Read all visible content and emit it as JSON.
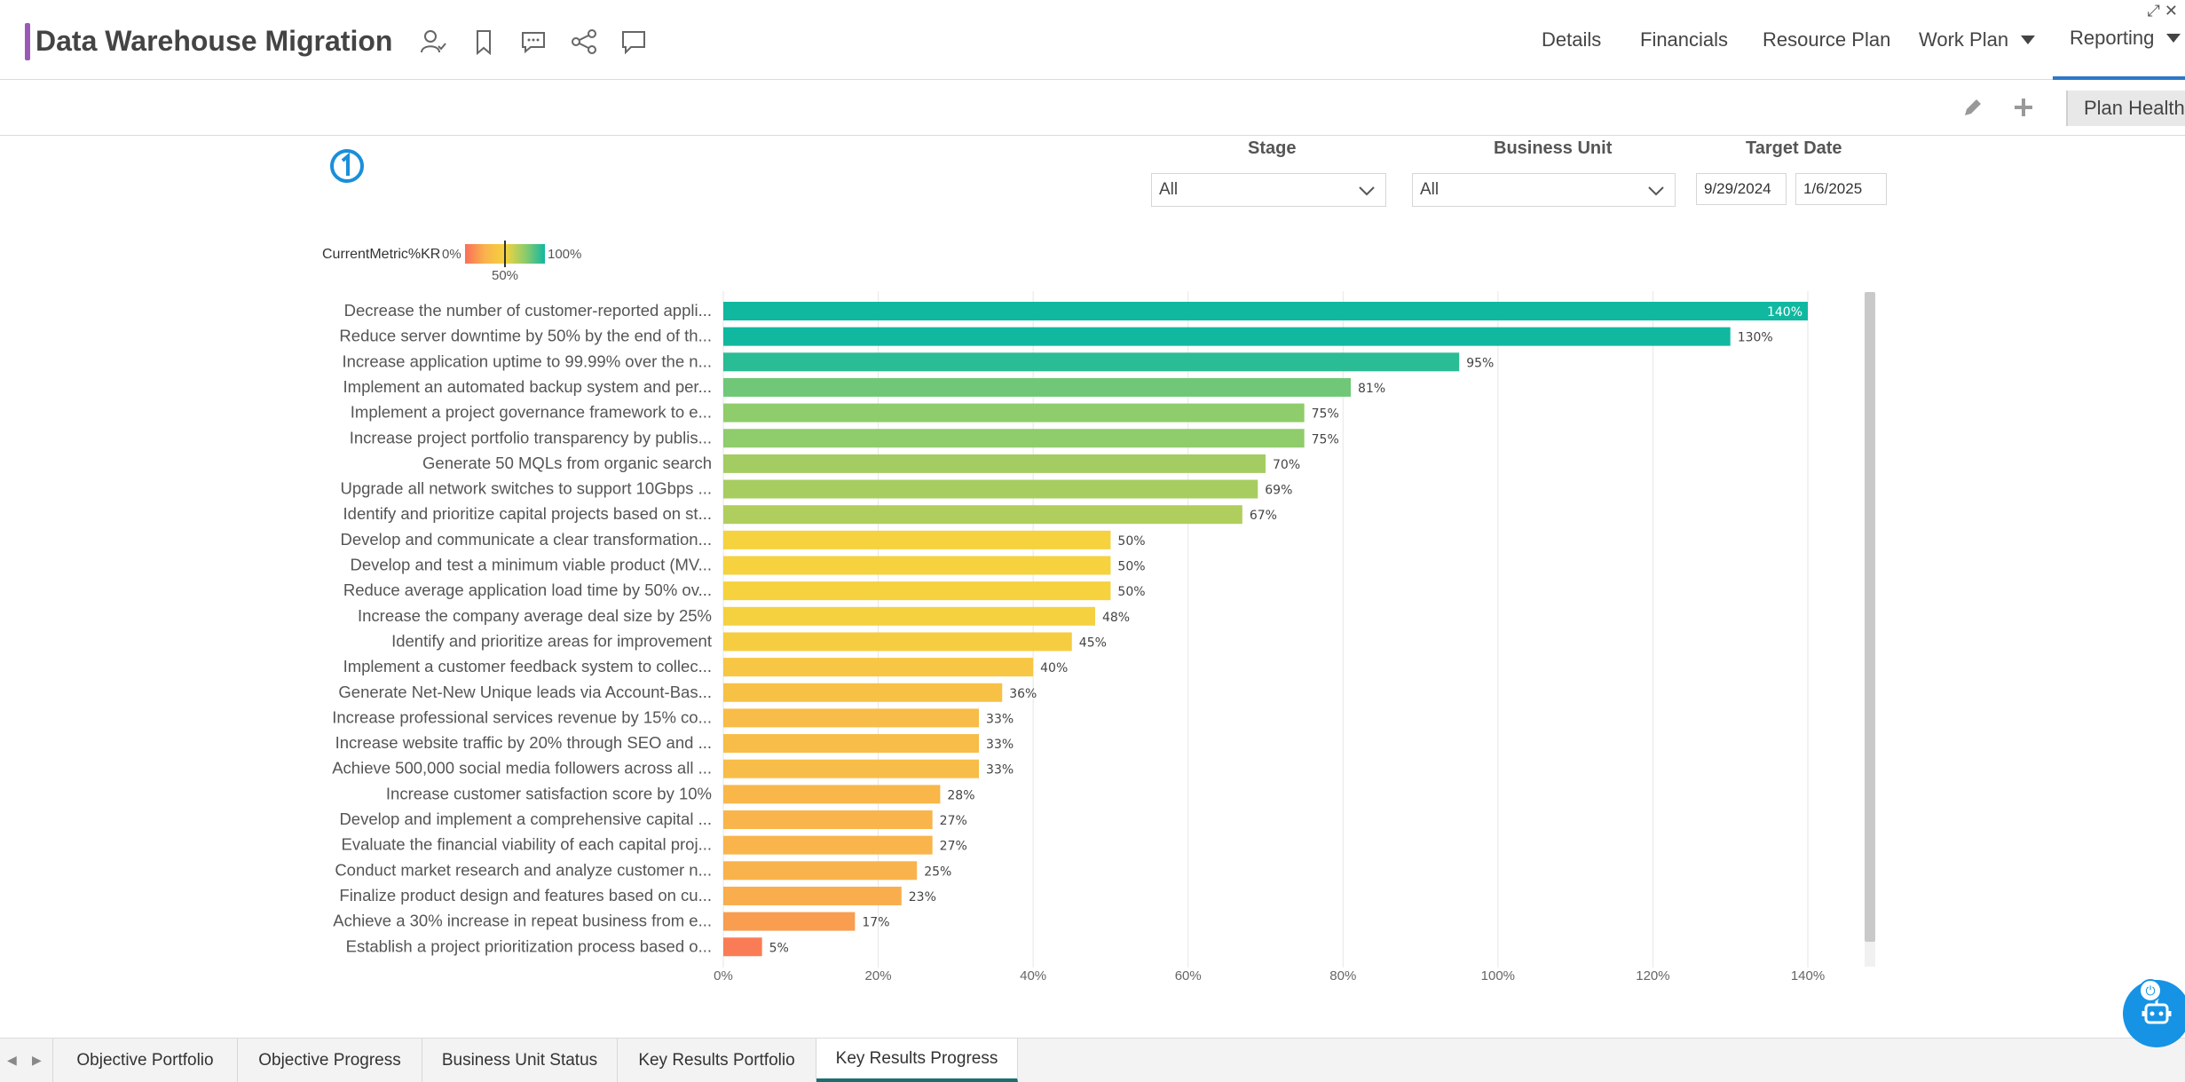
{
  "header": {
    "title": "Data Warehouse Migration",
    "nav": [
      {
        "label": "Details",
        "dropdown": false,
        "active": false
      },
      {
        "label": "Financials",
        "dropdown": false,
        "active": false
      },
      {
        "label": "Resource Plan",
        "dropdown": false,
        "active": false
      },
      {
        "label": "Work Plan",
        "dropdown": true,
        "active": false
      },
      {
        "label": "Reporting",
        "dropdown": true,
        "active": true
      }
    ],
    "toolbar_icons": [
      "user-check-icon",
      "bookmark-icon",
      "comment-icon",
      "share-icon",
      "chat-icon"
    ]
  },
  "subbar": {
    "icons": [
      "pencil-icon",
      "plus-icon"
    ],
    "plan_health_label": "Plan Health"
  },
  "filters": {
    "stage": {
      "label": "Stage",
      "value": "All"
    },
    "business_unit": {
      "label": "Business Unit",
      "value": "All"
    },
    "target_date": {
      "label": "Target Date",
      "from": "9/29/2024",
      "to": "1/6/2025"
    }
  },
  "legend": {
    "title": "CurrentMetric%KR",
    "min_label": "0%",
    "mid_label": "50%",
    "max_label": "100%",
    "colors": [
      "#fa6e5a",
      "#f9b34c",
      "#f5d23e",
      "#8fcc6b",
      "#11b8a0"
    ]
  },
  "chart_data": {
    "type": "bar",
    "orientation": "horizontal",
    "title": "",
    "xlabel": "",
    "ylabel": "",
    "xlim": [
      0,
      140
    ],
    "x_ticks": [
      "0%",
      "20%",
      "40%",
      "60%",
      "80%",
      "100%",
      "120%",
      "140%"
    ],
    "grid": true,
    "categories": [
      "Decrease the number of customer-reported appli...",
      "Reduce server downtime by 50% by the end of th...",
      "Increase application uptime to 99.99% over the n...",
      "Implement an automated backup system and per...",
      "Implement a project governance framework to e...",
      "Increase project portfolio transparency by publis...",
      "Generate 50 MQLs from organic search",
      "Upgrade all network switches to support 10Gbps ...",
      "Identify and prioritize capital projects based on st...",
      "Develop and communicate a clear transformation...",
      "Develop and test a minimum viable product (MV...",
      "Reduce average application load time by 50% ov...",
      "Increase the company average deal size by 25%",
      "Identify and prioritize areas for improvement",
      "Implement a customer feedback system to collec...",
      "Generate Net-New Unique leads via Account-Bas...",
      "Increase professional services revenue by 15% co...",
      "Increase website traffic by 20% through SEO and ...",
      "Achieve 500,000 social media followers across all ...",
      "Increase customer satisfaction score by 10%",
      "Develop and implement a comprehensive capital ...",
      "Evaluate the financial viability of each capital proj...",
      "Conduct market research and analyze customer n...",
      "Finalize product design and features based on cu...",
      "Achieve a 30% increase in repeat business from e...",
      "Establish a project prioritization process based o..."
    ],
    "values": [
      140,
      130,
      95,
      81,
      75,
      75,
      70,
      69,
      67,
      50,
      50,
      50,
      48,
      45,
      40,
      36,
      33,
      33,
      33,
      28,
      27,
      27,
      25,
      23,
      17,
      5
    ],
    "value_labels": [
      "140%",
      "130%",
      "95%",
      "81%",
      "75%",
      "75%",
      "70%",
      "69%",
      "67%",
      "50%",
      "50%",
      "50%",
      "48%",
      "45%",
      "40%",
      "36%",
      "33%",
      "33%",
      "33%",
      "28%",
      "27%",
      "27%",
      "25%",
      "23%",
      "17%",
      "5%"
    ]
  },
  "tabs": [
    {
      "label": "Objective Portfolio",
      "active": false
    },
    {
      "label": "Objective Progress",
      "active": false
    },
    {
      "label": "Business Unit Status",
      "active": false
    },
    {
      "label": "Key Results Portfolio",
      "active": false
    },
    {
      "label": "Key Results Progress",
      "active": true
    }
  ],
  "win_controls": [
    "expand-icon",
    "close-icon"
  ]
}
